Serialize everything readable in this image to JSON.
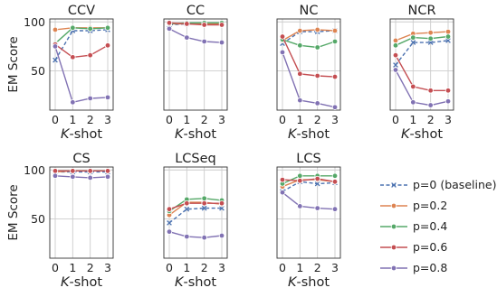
{
  "ylabel": "EM Score",
  "xlabel_prefix": "K",
  "xlabel_suffix": "-shot",
  "legend": [
    {
      "name": "p=0 (baseline)",
      "color": "#4c72b0",
      "dashed": true,
      "marker": "x"
    },
    {
      "name": "p=0.2",
      "color": "#dd8452",
      "dashed": false,
      "marker": "o"
    },
    {
      "name": "p=0.4",
      "color": "#55a868",
      "dashed": false,
      "marker": "o"
    },
    {
      "name": "p=0.6",
      "color": "#c44e52",
      "dashed": false,
      "marker": "o"
    },
    {
      "name": "p=0.8",
      "color": "#8172b3",
      "dashed": false,
      "marker": "o"
    }
  ],
  "chart_data": [
    {
      "type": "line",
      "title": "CCV",
      "x": [
        0,
        1,
        2,
        3
      ],
      "ylim": [
        10,
        103
      ],
      "yticks": [
        50,
        100
      ],
      "grid": true,
      "series": [
        {
          "name": "p=0 (baseline)",
          "values": [
            61,
            91,
            91,
            92
          ]
        },
        {
          "name": "p=0.2",
          "values": [
            92,
            94,
            94,
            94
          ]
        },
        {
          "name": "p=0.4",
          "values": [
            78,
            94,
            93,
            94
          ]
        },
        {
          "name": "p=0.6",
          "values": [
            77,
            64,
            66,
            76
          ]
        },
        {
          "name": "p=0.8",
          "values": [
            75,
            18,
            22,
            23
          ]
        }
      ]
    },
    {
      "type": "line",
      "title": "CC",
      "x": [
        0,
        1,
        2,
        3
      ],
      "ylim": [
        10,
        103
      ],
      "yticks": [
        50,
        100
      ],
      "grid": true,
      "series": [
        {
          "name": "p=0 (baseline)",
          "values": [
            97,
            98,
            98,
            98
          ]
        },
        {
          "name": "p=0.2",
          "values": [
            98,
            98,
            98,
            98
          ]
        },
        {
          "name": "p=0.4",
          "values": [
            98,
            99,
            99,
            99
          ]
        },
        {
          "name": "p=0.6",
          "values": [
            99,
            98,
            97,
            97
          ]
        },
        {
          "name": "p=0.8",
          "values": [
            93,
            84,
            80,
            79
          ]
        }
      ]
    },
    {
      "type": "line",
      "title": "NC",
      "x": [
        0,
        1,
        2,
        3
      ],
      "ylim": [
        10,
        103
      ],
      "yticks": [
        50,
        100
      ],
      "grid": true,
      "series": [
        {
          "name": "p=0 (baseline)",
          "values": [
            78,
            90,
            90,
            91
          ]
        },
        {
          "name": "p=0.2",
          "values": [
            81,
            91,
            92,
            91
          ]
        },
        {
          "name": "p=0.4",
          "values": [
            82,
            76,
            74,
            80
          ]
        },
        {
          "name": "p=0.6",
          "values": [
            85,
            47,
            45,
            44
          ]
        },
        {
          "name": "p=0.8",
          "values": [
            69,
            20,
            17,
            13
          ]
        }
      ]
    },
    {
      "type": "line",
      "title": "NCR",
      "x": [
        0,
        1,
        2,
        3
      ],
      "ylim": [
        10,
        103
      ],
      "yticks": [
        50,
        100
      ],
      "grid": true,
      "series": [
        {
          "name": "p=0 (baseline)",
          "values": [
            56,
            79,
            79,
            81
          ]
        },
        {
          "name": "p=0.2",
          "values": [
            81,
            88,
            89,
            90
          ]
        },
        {
          "name": "p=0.4",
          "values": [
            76,
            84,
            83,
            85
          ]
        },
        {
          "name": "p=0.6",
          "values": [
            66,
            34,
            30,
            30
          ]
        },
        {
          "name": "p=0.8",
          "values": [
            51,
            18,
            15,
            19
          ]
        }
      ]
    },
    {
      "type": "line",
      "title": "CS",
      "x": [
        0,
        1,
        2,
        3
      ],
      "ylim": [
        10,
        103
      ],
      "yticks": [
        50,
        100
      ],
      "grid": true,
      "series": [
        {
          "name": "p=0 (baseline)",
          "values": [
            98,
            98,
            98,
            98
          ]
        },
        {
          "name": "p=0.2",
          "values": [
            98,
            99,
            99,
            99
          ]
        },
        {
          "name": "p=0.4",
          "values": [
            99,
            99,
            99,
            99
          ]
        },
        {
          "name": "p=0.6",
          "values": [
            99,
            99,
            99,
            99
          ]
        },
        {
          "name": "p=0.8",
          "values": [
            94,
            93,
            92,
            93
          ]
        }
      ]
    },
    {
      "type": "line",
      "title": "LCSeq",
      "x": [
        0,
        1,
        2,
        3
      ],
      "ylim": [
        10,
        103
      ],
      "yticks": [
        50,
        100
      ],
      "grid": true,
      "series": [
        {
          "name": "p=0 (baseline)",
          "values": [
            46,
            60,
            61,
            61
          ]
        },
        {
          "name": "p=0.2",
          "values": [
            54,
            67,
            67,
            65
          ]
        },
        {
          "name": "p=0.4",
          "values": [
            58,
            70,
            71,
            69
          ]
        },
        {
          "name": "p=0.6",
          "values": [
            60,
            66,
            66,
            66
          ]
        },
        {
          "name": "p=0.8",
          "values": [
            37,
            32,
            31,
            33
          ]
        }
      ]
    },
    {
      "type": "line",
      "title": "LCS",
      "x": [
        0,
        1,
        2,
        3
      ],
      "ylim": [
        10,
        103
      ],
      "yticks": [
        50,
        100
      ],
      "grid": true,
      "series": [
        {
          "name": "p=0 (baseline)",
          "values": [
            78,
            88,
            86,
            87
          ]
        },
        {
          "name": "p=0.2",
          "values": [
            83,
            90,
            90,
            88
          ]
        },
        {
          "name": "p=0.4",
          "values": [
            86,
            94,
            94,
            94
          ]
        },
        {
          "name": "p=0.6",
          "values": [
            90,
            89,
            91,
            88
          ]
        },
        {
          "name": "p=0.8",
          "values": [
            77,
            63,
            61,
            60
          ]
        }
      ]
    }
  ]
}
